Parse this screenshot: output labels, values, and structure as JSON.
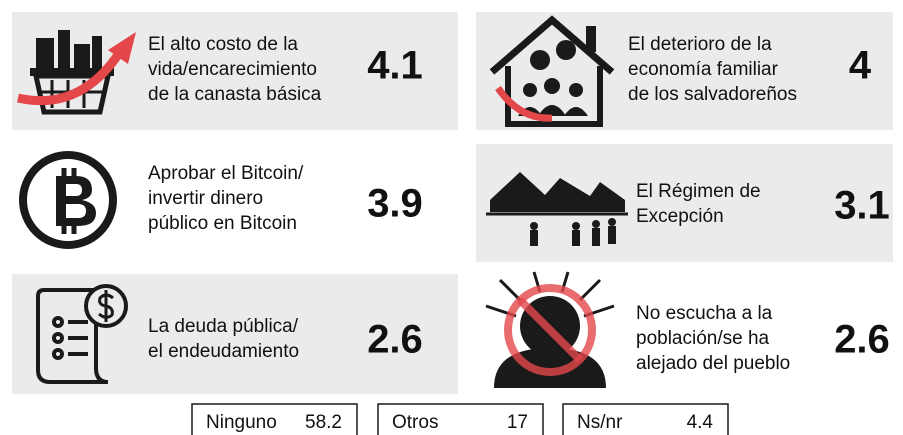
{
  "items": [
    {
      "label": [
        "El alto costo de la",
        "vida/encarecimiento",
        "de la canasta básica"
      ],
      "value": 4.1
    },
    {
      "label": [
        "El deterioro de la",
        "economía familiar",
        "de los salvadoreños"
      ],
      "value": 4
    },
    {
      "label": [
        "Aprobar el Bitcoin/",
        "invertir dinero",
        "público en Bitcoin"
      ],
      "value": 3.9
    },
    {
      "label": [
        "El Régimen de",
        "Excepción"
      ],
      "value": 3.1
    },
    {
      "label": [
        "La deuda pública/",
        "el endeudamiento"
      ],
      "value": 2.6
    },
    {
      "label": [
        "No escucha a la",
        "población/se ha",
        "alejado del pueblo"
      ],
      "value": 2.6
    }
  ],
  "others": [
    {
      "label": "Ninguno",
      "value": 58.2
    },
    {
      "label": "Otros",
      "value": 17
    },
    {
      "label": "Ns/nr",
      "value": 4.4
    }
  ]
}
